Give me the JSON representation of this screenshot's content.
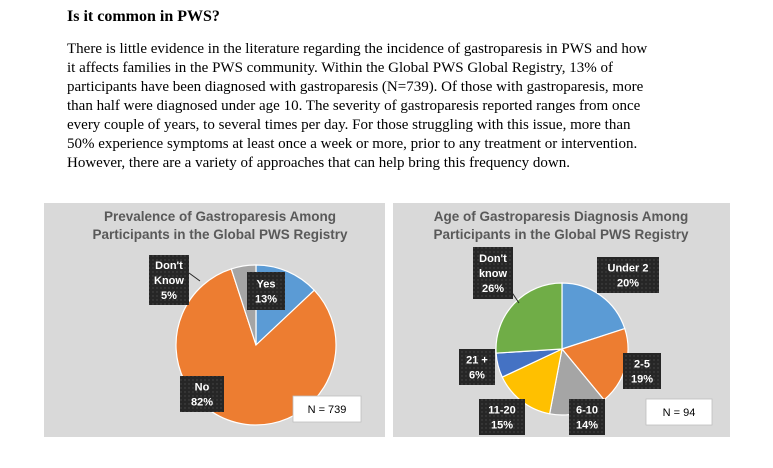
{
  "heading": "Is it common in PWS?",
  "body_lines": [
    "There is little evidence in the literature regarding the incidence of gastroparesis in PWS and how",
    "it affects families in the PWS community. Within the Global PWS Global Registry, 13% of",
    "participants have been diagnosed with gastroparesis (N=739). Of those with gastroparesis, more",
    "than half were diagnosed under age 10. The severity of gastroparesis reported ranges from once",
    "every couple of years, to several times per day.  For those struggling with this issue, more than",
    "50% experience symptoms at least once a week or more, prior to any treatment or intervention.",
    "However, there are a variety of approaches that can help bring this frequency down."
  ],
  "chart_data": [
    {
      "type": "pie",
      "title_lines": [
        "Prevalence of Gastroparesis Among",
        "Participants in the Global PWS Registry"
      ],
      "sample_label": "N = 739",
      "start_angle_deg": 0,
      "slices": [
        {
          "label_lines": [
            "Yes",
            "13%"
          ],
          "value": 13,
          "color": "#5b9bd5"
        },
        {
          "label_lines": [
            "No",
            "82%"
          ],
          "value": 82,
          "color": "#ed7d31"
        },
        {
          "label_lines": [
            "Don't",
            "Know",
            "5%"
          ],
          "value": 5,
          "color": "#a5a5a5"
        }
      ]
    },
    {
      "type": "pie",
      "title_lines": [
        "Age of Gastroparesis Diagnosis Among",
        "Participants in the Global PWS Registry"
      ],
      "sample_label": "N = 94",
      "start_angle_deg": 0,
      "slices": [
        {
          "label_lines": [
            "Under 2",
            "20%"
          ],
          "value": 20,
          "color": "#5b9bd5"
        },
        {
          "label_lines": [
            "2-5",
            "19%"
          ],
          "value": 19,
          "color": "#ed7d31"
        },
        {
          "label_lines": [
            "6-10",
            "14%"
          ],
          "value": 14,
          "color": "#a5a5a5"
        },
        {
          "label_lines": [
            "11-20",
            "15%"
          ],
          "value": 15,
          "color": "#ffc000"
        },
        {
          "label_lines": [
            "21 +",
            "6%"
          ],
          "value": 6,
          "color": "#4472c4"
        },
        {
          "label_lines": [
            "Don't",
            "know",
            "26%"
          ],
          "value": 26,
          "color": "#70ad47"
        }
      ]
    }
  ]
}
